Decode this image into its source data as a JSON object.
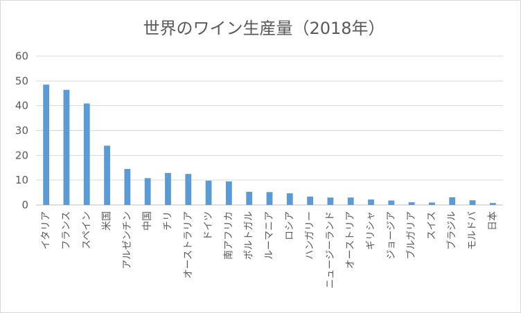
{
  "chart_data": {
    "type": "bar",
    "title": "世界のワイン生産量（2018年）",
    "xlabel": "",
    "ylabel": "",
    "ylim": [
      0,
      60
    ],
    "yticks": [
      0,
      10,
      20,
      30,
      40,
      50,
      60
    ],
    "grid": true,
    "legend": "none",
    "bar_color": "#5b9bd5",
    "categories": [
      "イタリア",
      "フランス",
      "スペイン",
      "米国",
      "アルゼンチン",
      "中国",
      "チリ",
      "オーストラリア",
      "ドイツ",
      "南アフリカ",
      "ポルトガル",
      "ルーマニア",
      "ロシア",
      "ハンガリー",
      "ニュージーランド",
      "オーストリア",
      "ギリシャ",
      "ジョージア",
      "ブルガリア",
      "スイス",
      "ブラジル",
      "モルドバ",
      "日本"
    ],
    "values": [
      48.5,
      46.4,
      40.9,
      23.9,
      14.5,
      10.8,
      12.9,
      12.5,
      9.8,
      9.5,
      5.3,
      5.2,
      4.7,
      3.4,
      3.0,
      3.0,
      2.2,
      1.8,
      1.1,
      1.0,
      3.1,
      1.9,
      0.8
    ]
  }
}
